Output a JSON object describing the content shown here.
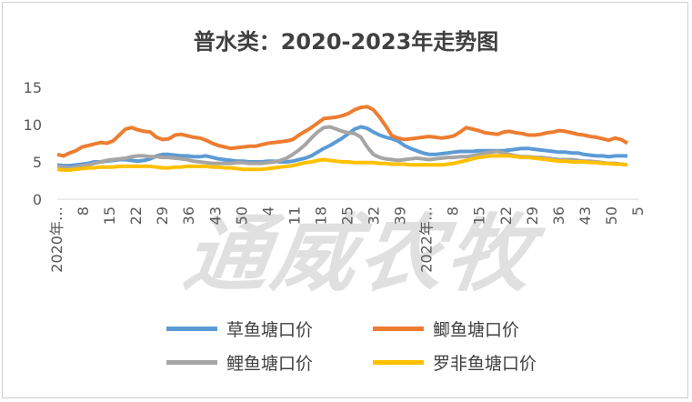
{
  "chart_data": {
    "type": "line",
    "title": "普水类：2020-2023年走势图",
    "ylim": [
      0,
      15
    ],
    "yticks": [
      0,
      5,
      10,
      15
    ],
    "x_tick_labels": [
      "2020年…",
      "8",
      "15",
      "22",
      "29",
      "36",
      "43",
      "50",
      "4",
      "11",
      "18",
      "25",
      "32",
      "39",
      "2022年…",
      "8",
      "15",
      "22",
      "29",
      "36",
      "43",
      "50",
      "5"
    ],
    "grid": false,
    "legend_position": "bottom",
    "series": [
      {
        "name": "草鱼塘口价",
        "color": "#5B9BD5",
        "values": [
          4.6,
          4.5,
          4.5,
          4.6,
          4.7,
          4.8,
          5.0,
          5.0,
          5.1,
          5.2,
          5.3,
          5.3,
          5.2,
          5.1,
          5.2,
          5.4,
          5.8,
          6.0,
          6.0,
          5.9,
          5.8,
          5.8,
          5.7,
          5.7,
          5.8,
          5.6,
          5.4,
          5.3,
          5.2,
          5.1,
          5.1,
          5.0,
          5.0,
          5.0,
          5.1,
          5.1,
          5.0,
          5.0,
          5.1,
          5.3,
          5.5,
          5.8,
          6.3,
          6.8,
          7.2,
          7.7,
          8.2,
          8.8,
          9.4,
          9.7,
          9.5,
          9.0,
          8.6,
          8.3,
          8.1,
          7.8,
          7.2,
          6.8,
          6.5,
          6.2,
          6.0,
          6.0,
          6.1,
          6.2,
          6.3,
          6.4,
          6.4,
          6.4,
          6.5,
          6.5,
          6.5,
          6.5,
          6.5,
          6.6,
          6.7,
          6.8,
          6.8,
          6.7,
          6.6,
          6.5,
          6.4,
          6.3,
          6.3,
          6.2,
          6.2,
          6.0,
          5.9,
          5.8,
          5.8,
          5.7,
          5.8,
          5.8,
          5.8
        ]
      },
      {
        "name": "鲫鱼塘口价",
        "color": "#ED7D31",
        "values": [
          6.0,
          5.8,
          6.2,
          6.5,
          7.0,
          7.2,
          7.4,
          7.6,
          7.5,
          7.8,
          8.6,
          9.4,
          9.6,
          9.3,
          9.1,
          9.0,
          8.3,
          8.0,
          8.1,
          8.6,
          8.7,
          8.5,
          8.3,
          8.2,
          7.9,
          7.5,
          7.2,
          7.0,
          6.8,
          6.9,
          7.0,
          7.1,
          7.1,
          7.3,
          7.5,
          7.6,
          7.7,
          7.8,
          8.0,
          8.6,
          9.1,
          9.6,
          10.2,
          10.8,
          10.9,
          11.0,
          11.2,
          11.5,
          12.0,
          12.3,
          12.4,
          12.0,
          11.0,
          9.8,
          8.5,
          8.2,
          8.0,
          8.1,
          8.2,
          8.3,
          8.4,
          8.3,
          8.2,
          8.3,
          8.5,
          9.0,
          9.6,
          9.4,
          9.2,
          8.9,
          8.8,
          8.7,
          9.0,
          9.1,
          8.9,
          8.8,
          8.6,
          8.6,
          8.7,
          8.9,
          9.0,
          9.2,
          9.1,
          8.9,
          8.7,
          8.6,
          8.4,
          8.3,
          8.1,
          7.9,
          8.2,
          8.0,
          7.5
        ]
      },
      {
        "name": "鲤鱼塘口价",
        "color": "#A5A5A5",
        "values": [
          4.4,
          4.3,
          4.2,
          4.3,
          4.5,
          4.6,
          4.8,
          5.0,
          5.2,
          5.3,
          5.4,
          5.5,
          5.7,
          5.8,
          5.8,
          5.7,
          5.7,
          5.6,
          5.6,
          5.5,
          5.4,
          5.3,
          5.1,
          5.0,
          4.9,
          4.8,
          4.8,
          4.8,
          4.8,
          4.9,
          4.9,
          4.8,
          4.8,
          4.8,
          4.9,
          5.0,
          5.2,
          5.5,
          6.0,
          6.6,
          7.3,
          8.2,
          9.0,
          9.6,
          9.7,
          9.4,
          9.1,
          8.9,
          8.8,
          8.3,
          7.0,
          6.0,
          5.6,
          5.4,
          5.3,
          5.2,
          5.3,
          5.4,
          5.5,
          5.4,
          5.3,
          5.4,
          5.5,
          5.6,
          5.6,
          5.7,
          5.7,
          5.8,
          6.0,
          6.2,
          6.3,
          6.4,
          6.2,
          6.0,
          5.8,
          5.7,
          5.7,
          5.6,
          5.6,
          5.5,
          5.4,
          5.3,
          5.3,
          5.3,
          5.2,
          5.1,
          5.1,
          5.0,
          4.9,
          4.8,
          4.8,
          4.7,
          4.6
        ]
      },
      {
        "name": "罗非鱼塘口价",
        "color": "#FFC000",
        "values": [
          4.0,
          3.9,
          3.9,
          4.0,
          4.1,
          4.2,
          4.2,
          4.3,
          4.3,
          4.3,
          4.4,
          4.4,
          4.4,
          4.4,
          4.4,
          4.4,
          4.3,
          4.2,
          4.2,
          4.3,
          4.3,
          4.4,
          4.4,
          4.4,
          4.4,
          4.3,
          4.3,
          4.2,
          4.2,
          4.1,
          4.0,
          4.0,
          4.0,
          4.0,
          4.1,
          4.2,
          4.3,
          4.4,
          4.5,
          4.7,
          4.9,
          5.0,
          5.2,
          5.3,
          5.2,
          5.1,
          5.0,
          5.0,
          4.9,
          4.9,
          4.9,
          4.9,
          4.8,
          4.8,
          4.7,
          4.7,
          4.7,
          4.6,
          4.6,
          4.6,
          4.6,
          4.6,
          4.6,
          4.7,
          4.8,
          5.0,
          5.2,
          5.4,
          5.6,
          5.7,
          5.8,
          5.8,
          5.8,
          5.8,
          5.7,
          5.6,
          5.6,
          5.5,
          5.4,
          5.3,
          5.2,
          5.1,
          5.1,
          5.0,
          5.0,
          5.0,
          4.9,
          4.9,
          4.8,
          4.8,
          4.7,
          4.7,
          4.6
        ]
      }
    ]
  },
  "legend": {
    "items": [
      {
        "label": "草鱼塘口价",
        "color": "#5B9BD5"
      },
      {
        "label": "鲫鱼塘口价",
        "color": "#ED7D31"
      },
      {
        "label": "鲤鱼塘口价",
        "color": "#A5A5A5"
      },
      {
        "label": "罗非鱼塘口价",
        "color": "#FFC000"
      }
    ]
  },
  "watermark": "通威农牧"
}
